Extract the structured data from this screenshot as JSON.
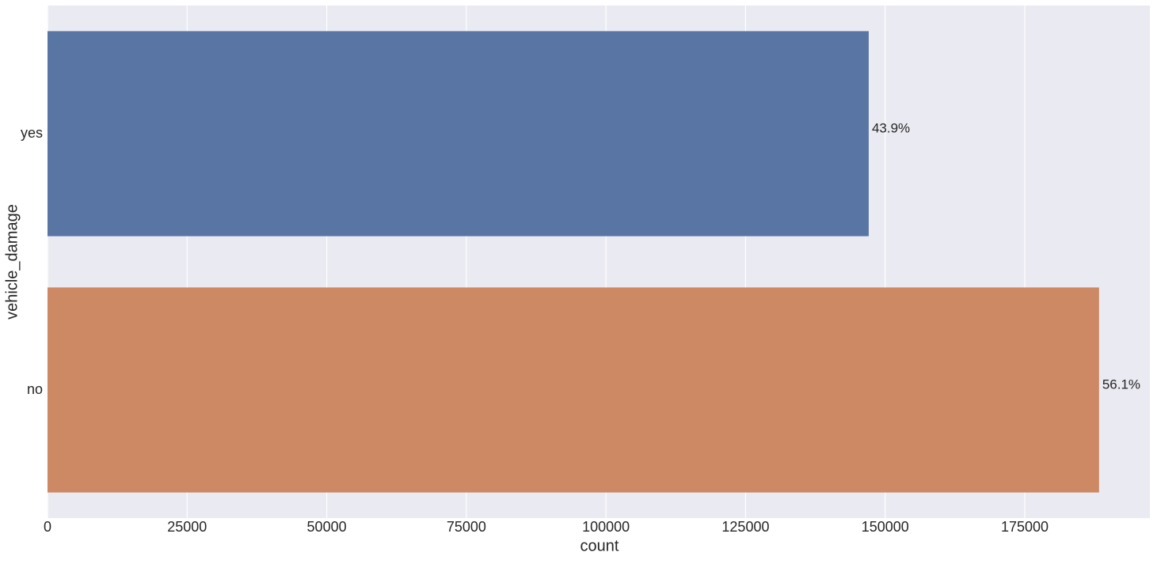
{
  "chart_data": {
    "type": "barh",
    "xlabel": "count",
    "ylabel": "vehicle_damage",
    "categories": [
      "yes",
      "no"
    ],
    "series": [
      {
        "name": "count",
        "colors": [
          "#5875a4",
          "#cc8963"
        ],
        "values": [
          147050,
          188300
        ]
      }
    ],
    "annotations": [
      "43.9%",
      "56.1%"
    ],
    "xlim": [
      0,
      197400
    ],
    "xticks": [
      0,
      25000,
      50000,
      75000,
      100000,
      125000,
      150000,
      175000
    ],
    "grid": true
  }
}
